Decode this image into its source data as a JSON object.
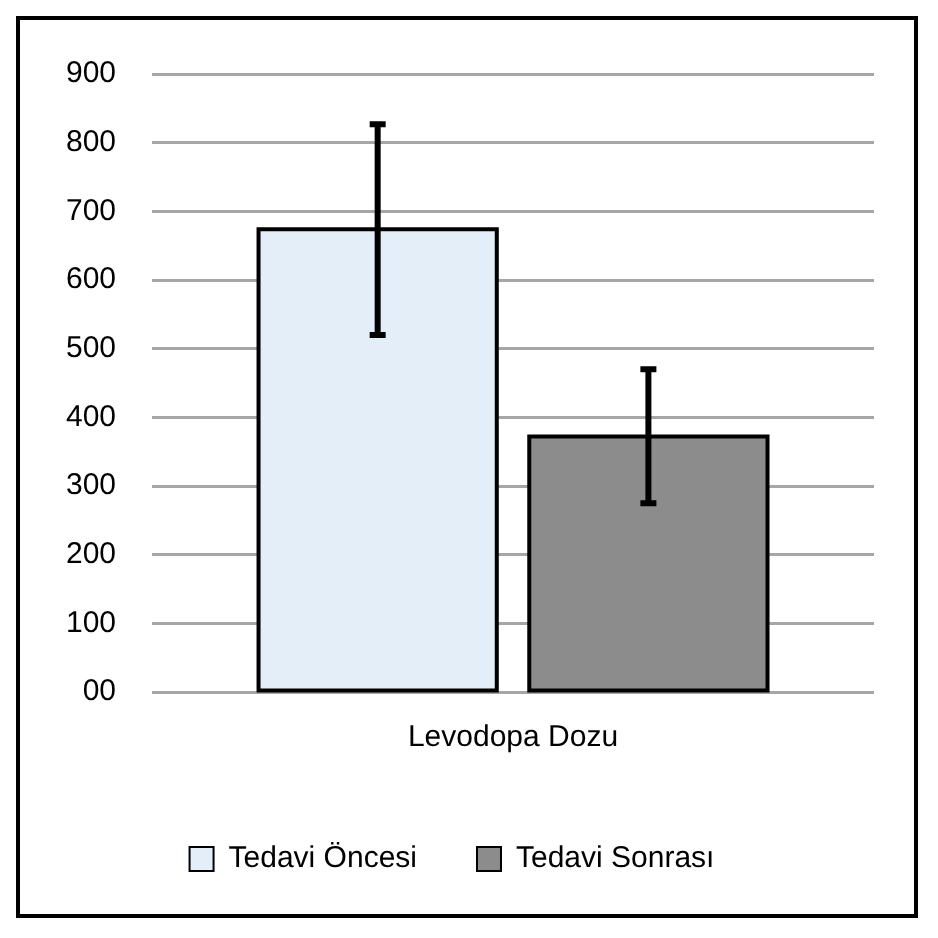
{
  "chart_data": {
    "type": "bar",
    "categories": [
      "Levodopa Dozu"
    ],
    "series": [
      {
        "name": "Tedavi Öncesi",
        "color": "#e4eef9",
        "values": [
          674
        ],
        "errors": [
          [
            520,
            827
          ]
        ]
      },
      {
        "name": "Tedavi Sonrası",
        "color": "#8c8c8c",
        "values": [
          372
        ],
        "errors": [
          [
            275,
            470
          ]
        ]
      }
    ],
    "ylim": [
      0,
      900
    ],
    "yticks": [
      {
        "value": 0,
        "label": "00"
      },
      100,
      200,
      300,
      400,
      500,
      600,
      700,
      800,
      900
    ],
    "grid": "y",
    "legend": "bottom"
  }
}
